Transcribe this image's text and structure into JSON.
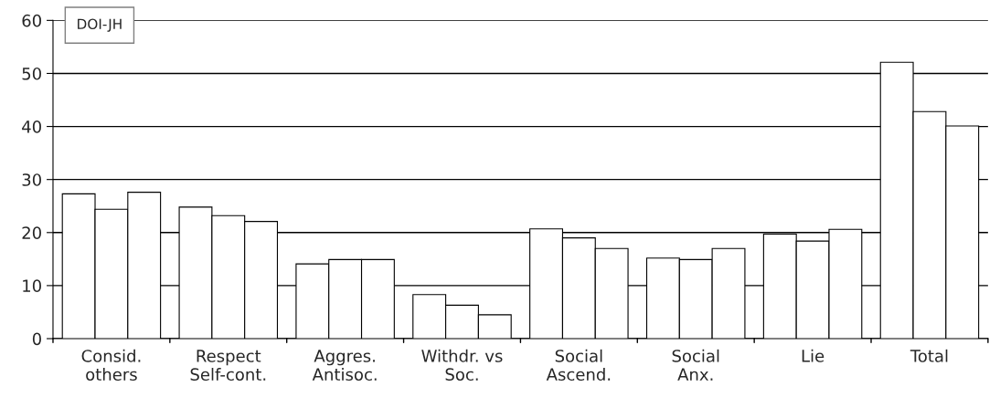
{
  "chart_data": {
    "type": "bar",
    "title": "DOI-JH",
    "categories": [
      "Consid.\nothers",
      "Respect\nSelf-cont.",
      "Aggres.\nAntisoc.",
      "Withdr. vs\nSoc.",
      "Social\nAscend.",
      "Social\nAnx.",
      "Lie",
      "Total"
    ],
    "series": [
      {
        "color": "#ffffff",
        "values": [
          27.3,
          24.8,
          14.1,
          8.3,
          20.7,
          15.2,
          19.7,
          52.1
        ]
      },
      {
        "color": "#ffffff",
        "values": [
          24.4,
          23.2,
          14.9,
          6.3,
          19.0,
          14.9,
          18.4,
          42.8
        ]
      },
      {
        "color": "#ffffff",
        "values": [
          27.6,
          22.1,
          14.9,
          4.5,
          17.0,
          17.0,
          20.6,
          40.1
        ]
      }
    ],
    "ylim": [
      0,
      60
    ],
    "yticks": [
      0,
      10,
      20,
      30,
      40,
      50,
      60
    ],
    "grid": "y",
    "legend": false
  }
}
